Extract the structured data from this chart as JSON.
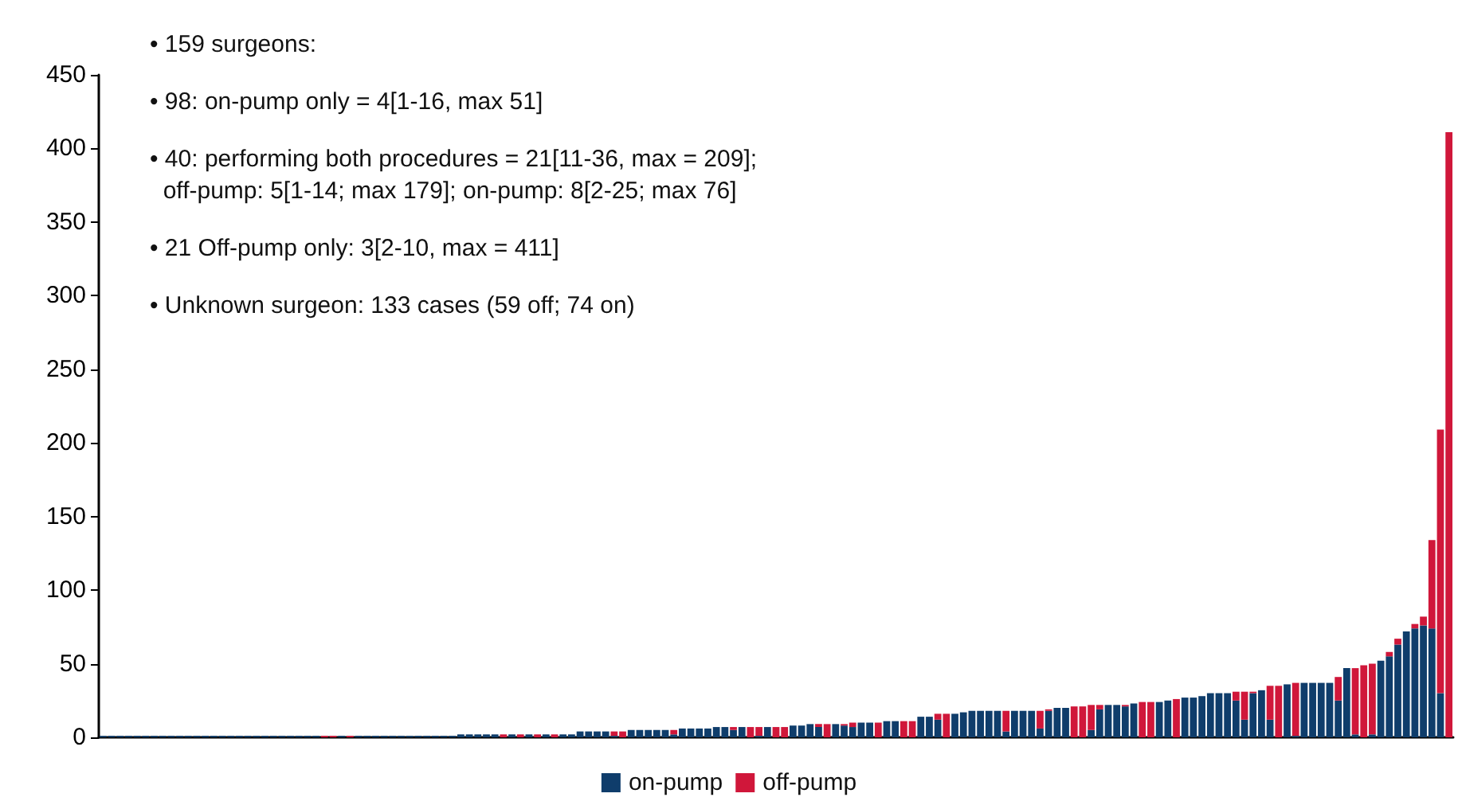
{
  "chart_data": {
    "type": "bar",
    "stacked": true,
    "legend": "bottom",
    "grid": false,
    "annotations": [
      "• 159 surgeons:",
      "• 98: on-pump only = 4[1-16, max 51]",
      "• 40: performing both procedures = 21[11-36, max = 209];\n  off-pump: 5[1-14; max 179]; on-pump: 8[2-25; max 76]",
      "• 21 Off-pump only: 3[2-10, max = 411]",
      "• Unknown surgeon: 133 cases (59 off; 74 on)"
    ],
    "ylim": [
      0,
      450
    ],
    "yticks": [
      0,
      50,
      100,
      150,
      200,
      250,
      300,
      350,
      400,
      450
    ],
    "categories": [
      null,
      null,
      null,
      null,
      null,
      null,
      null,
      null,
      null,
      null,
      null,
      null,
      null,
      null,
      null,
      null,
      null,
      null,
      null,
      null,
      null,
      null,
      null,
      null,
      null,
      null,
      null,
      null,
      null,
      null,
      null,
      null,
      null,
      null,
      null,
      null,
      null,
      null,
      null,
      null,
      null,
      null,
      null,
      null,
      null,
      null,
      null,
      null,
      null,
      null,
      null,
      null,
      null,
      null,
      null,
      null,
      null,
      null,
      null,
      null,
      null,
      null,
      null,
      null,
      null,
      null,
      null,
      null,
      null,
      null,
      null,
      null,
      null,
      null,
      null,
      null,
      null,
      null,
      null,
      null,
      null,
      null,
      null,
      null,
      null,
      null,
      null,
      null,
      null,
      null,
      null,
      null,
      null,
      null,
      null,
      null,
      null,
      null,
      null,
      null,
      null,
      null,
      null,
      null,
      null,
      null,
      null,
      null,
      null,
      null,
      null,
      null,
      null,
      null,
      null,
      null,
      null,
      null,
      null,
      null,
      null,
      null,
      null,
      null,
      null,
      null,
      null,
      null,
      null,
      null,
      null,
      null,
      null,
      null,
      null,
      null,
      null,
      null,
      null,
      null,
      null,
      null,
      null,
      null,
      null,
      null,
      null,
      null,
      null,
      null,
      null,
      null,
      null,
      null,
      null,
      null,
      null,
      null,
      null
    ],
    "series": [
      {
        "name": "on-pump",
        "color": "#0f3d6b",
        "values": [
          1,
          1,
          1,
          1,
          1,
          1,
          1,
          1,
          1,
          1,
          1,
          1,
          1,
          1,
          1,
          1,
          1,
          1,
          1,
          1,
          1,
          1,
          1,
          1,
          1,
          1,
          0,
          0,
          1,
          0,
          1,
          1,
          1,
          1,
          1,
          1,
          1,
          1,
          1,
          1,
          1,
          1,
          2,
          2,
          2,
          2,
          2,
          0,
          2,
          0,
          2,
          0,
          2,
          0,
          2,
          2,
          4,
          4,
          4,
          4,
          1,
          0,
          5,
          5,
          5,
          5,
          5,
          2,
          6,
          6,
          6,
          6,
          7,
          7,
          5,
          7,
          0,
          1,
          7,
          0,
          0,
          8,
          8,
          9,
          7,
          0,
          9,
          8,
          7,
          10,
          10,
          0,
          11,
          11,
          0,
          0,
          14,
          14,
          12,
          0,
          16,
          17,
          18,
          18,
          18,
          18,
          4,
          18,
          18,
          18,
          6,
          18,
          20,
          20,
          0,
          0,
          5,
          19,
          22,
          22,
          21,
          23,
          0,
          0,
          24,
          25,
          0,
          27,
          27,
          28,
          30,
          30,
          30,
          25,
          12,
          30,
          32,
          12,
          0,
          36,
          1,
          37,
          37,
          37,
          37,
          25,
          47,
          2,
          0,
          2,
          52,
          55,
          63,
          72,
          74,
          76,
          74,
          30,
          0
        ]
      },
      {
        "name": "off-pump",
        "color": "#d0173a",
        "values": [
          0,
          0,
          0,
          0,
          0,
          0,
          0,
          0,
          0,
          0,
          0,
          0,
          0,
          0,
          0,
          0,
          0,
          0,
          0,
          0,
          0,
          0,
          0,
          0,
          0,
          0,
          1,
          1,
          0,
          1,
          0,
          0,
          0,
          0,
          0,
          0,
          0,
          0,
          0,
          0,
          0,
          0,
          0,
          0,
          0,
          0,
          0,
          2,
          0,
          2,
          0,
          2,
          0,
          2,
          0,
          0,
          0,
          0,
          0,
          0,
          3,
          4,
          0,
          0,
          0,
          0,
          0,
          3,
          0,
          0,
          0,
          0,
          0,
          0,
          2,
          0,
          7,
          6,
          0,
          7,
          7,
          0,
          0,
          0,
          2,
          9,
          0,
          1,
          3,
          0,
          0,
          10,
          0,
          0,
          11,
          11,
          0,
          0,
          4,
          16,
          0,
          0,
          0,
          0,
          0,
          0,
          14,
          0,
          0,
          0,
          12,
          1,
          0,
          0,
          21,
          21,
          17,
          3,
          0,
          0,
          1,
          0,
          24,
          24,
          0,
          0,
          26,
          0,
          0,
          0,
          0,
          0,
          0,
          6,
          19,
          1,
          0,
          23,
          35,
          0,
          36,
          0,
          0,
          0,
          0,
          16,
          0,
          45,
          49,
          48,
          0,
          3,
          4,
          0,
          3,
          6,
          60,
          179,
          411
        ]
      }
    ]
  }
}
